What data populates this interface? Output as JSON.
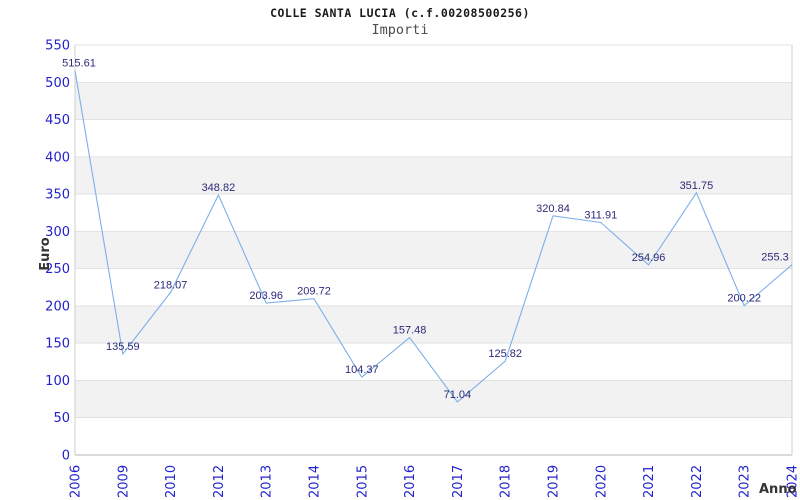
{
  "chart": {
    "title": "COLLE SANTA LUCIA (c.f.00208500256)",
    "subtitle": "Importi"
  },
  "chart_data": {
    "type": "line",
    "title": "COLLE SANTA LUCIA (c.f.00208500256)",
    "subtitle": "Importi",
    "xlabel": "Anno",
    "ylabel": "Euro",
    "categories": [
      "2006",
      "2009",
      "2010",
      "2012",
      "2013",
      "2014",
      "2015",
      "2016",
      "2017",
      "2018",
      "2019",
      "2020",
      "2021",
      "2022",
      "2023",
      "2024"
    ],
    "values": [
      515.61,
      135.59,
      218.07,
      348.82,
      203.96,
      209.72,
      104.37,
      157.48,
      71.04,
      125.82,
      320.84,
      311.91,
      254.96,
      351.75,
      200.22,
      255.3
    ],
    "point_labels": [
      "515.61",
      "135.59",
      "218.07",
      "348.82",
      "203.96",
      "209.72",
      "104.37",
      "157.48",
      "71.04",
      "125.82",
      "320.84",
      "311.91",
      "254.96",
      "351.75",
      "200.22",
      "255.3"
    ],
    "ylim": [
      0,
      550
    ],
    "ytick_step": 50,
    "grid": "horizontal-gridlines-with-alternating-bands",
    "legend": "none",
    "colors": {
      "line": "#7fafe8",
      "tick_label": "#2222cc",
      "point_label": "#2b2b7a",
      "band": "#f2f2f2",
      "gridline": "#e2e2e2",
      "axis_line": "#b5b5b5",
      "plot_border": "#cfcfcf",
      "axis_title": "#333333",
      "title": "#1a1a1a",
      "subtitle": "#4d4d4d"
    }
  }
}
